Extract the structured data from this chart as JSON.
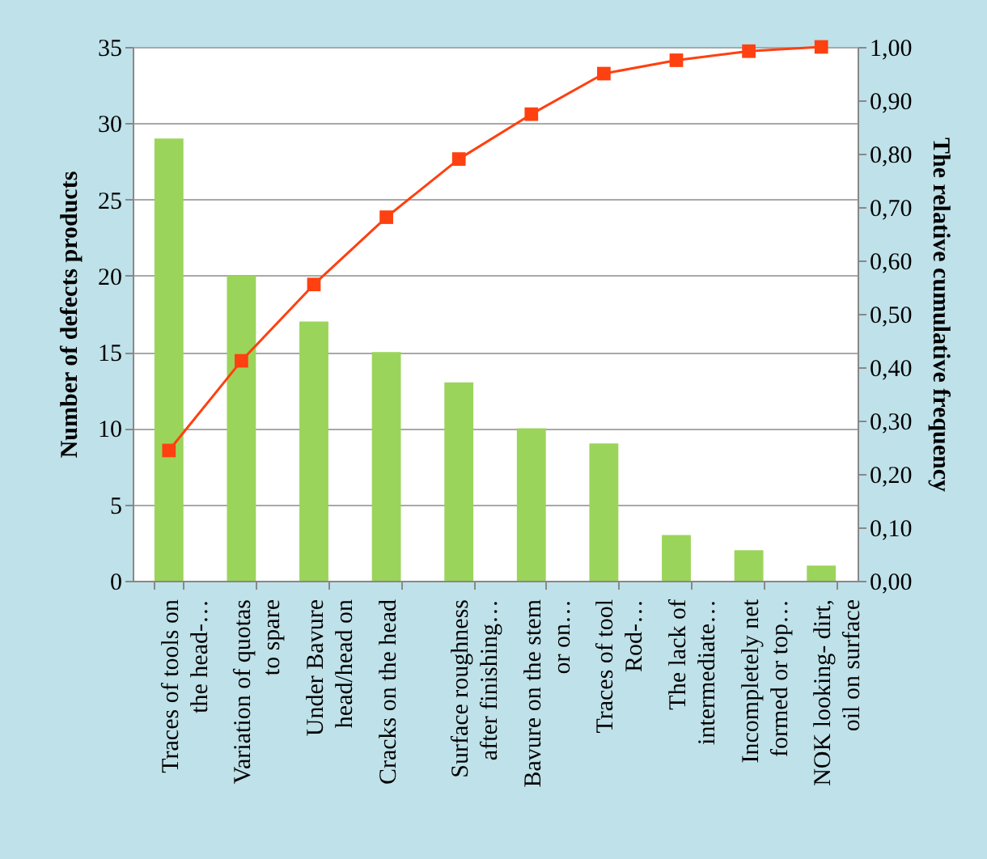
{
  "chart_data": {
    "type": "bar",
    "categories": [
      "Traces of tools on the head-…",
      "Variation of quotas to spare",
      "Under Bavure head/head on",
      "Cracks on the head",
      "Surface roughness after finishing…",
      "Bavure on the stem or on…",
      "Traces of tool Rod-…",
      "The lack of intermediate…",
      "Incompletely net formed or top…",
      "NOK looking- dirt, oil on surface"
    ],
    "series": [
      {
        "color": "#9bd45a",
        "values": [
          29,
          20,
          17,
          15,
          13,
          10,
          9,
          3,
          2,
          1
        ]
      },
      {
        "type": "line",
        "axis": "y2",
        "color": "#ff4010",
        "values": [
          0.244,
          0.412,
          0.555,
          0.681,
          0.79,
          0.874,
          0.95,
          0.975,
          0.992,
          1.0
        ]
      }
    ],
    "ylabel": "Number of defects products",
    "y2label": "The relative cumulative frequency",
    "ylim": [
      0,
      35
    ],
    "yticks": [
      0,
      5,
      10,
      15,
      20,
      25,
      30,
      35
    ],
    "y2lim": [
      0,
      1
    ],
    "y2ticks": [
      {
        "value": 0,
        "label": "0,00"
      },
      {
        "value": 0.1,
        "label": "0,10"
      },
      {
        "value": 0.2,
        "label": "0,20"
      },
      {
        "value": 0.3,
        "label": "0,30"
      },
      {
        "value": 0.4,
        "label": "0,40"
      },
      {
        "value": 0.5,
        "label": "0,50"
      },
      {
        "value": 0.6,
        "label": "0,60"
      },
      {
        "value": 0.7,
        "label": "0,70"
      },
      {
        "value": 0.8,
        "label": "0,80"
      },
      {
        "value": 0.9,
        "label": "0,90"
      },
      {
        "value": 1,
        "label": "1,00"
      }
    ],
    "grid": "y",
    "marker": "square",
    "line_style": "solid"
  }
}
